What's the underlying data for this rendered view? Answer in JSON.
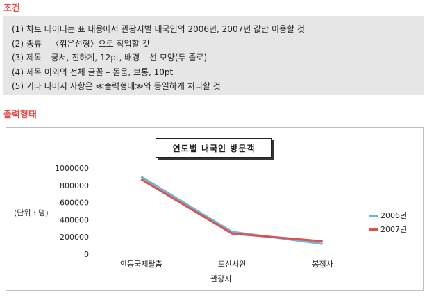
{
  "conditions": {
    "heading": "조건",
    "items": [
      "(1) 차트 데이터는 표 내용에서 관광지별 내국인의 2006년, 2007년 값만 이용할 것",
      "(2) 종류 – 〈꺾은선형〉으로 작업할 것",
      "(3) 제목 – 궁서, 진하게, 12pt, 배경 – 선 모양(두 줄로)",
      "(4) 제목 이외의 전체 글꼴 – 돋움, 보통, 10pt",
      "(5) 기타 나머지 사항은 ≪출력형태≫와 동일하게 처리할 것"
    ]
  },
  "output": {
    "heading": "출력형태"
  },
  "chart_data": {
    "type": "line",
    "title": "연도별 내국인 방문객",
    "ylabel": "(단위 : 명)",
    "xlabel": "관광지",
    "categories": [
      "안동국제탈춤",
      "도산서원",
      "봉정사"
    ],
    "ylim": [
      0,
      1000000
    ],
    "yticks": [
      "0",
      "200000",
      "400000",
      "600000",
      "800000",
      "1000000"
    ],
    "grid": false,
    "legend_position": "right",
    "series": [
      {
        "name": "2006년",
        "color": "#6fb3d6",
        "values": [
          900000,
          260000,
          120000
        ]
      },
      {
        "name": "2007년",
        "color": "#d9534f",
        "values": [
          870000,
          240000,
          150000
        ]
      }
    ]
  }
}
